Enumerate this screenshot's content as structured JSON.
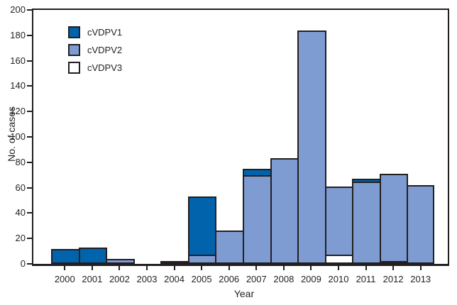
{
  "chart_data": {
    "type": "bar",
    "stacked": true,
    "title": "",
    "xlabel": "Year",
    "ylabel": "No. of cases",
    "categories": [
      "2000",
      "2001",
      "2002",
      "2003",
      "2004",
      "2005",
      "2006",
      "2007",
      "2008",
      "2009",
      "2010",
      "2011",
      "2012",
      "2013"
    ],
    "series": [
      {
        "name": "cVDPV1",
        "color": "#0063ac",
        "values": [
          12,
          13,
          0,
          0,
          2,
          46,
          0,
          5,
          0,
          0,
          0,
          2,
          0,
          0
        ]
      },
      {
        "name": "cVDPV2",
        "color": "#7f9cd2",
        "values": [
          0,
          0,
          4,
          0,
          0,
          7,
          26,
          70,
          83,
          184,
          54,
          65,
          69,
          62
        ]
      },
      {
        "name": "cVDPV3",
        "color": "#ffffff",
        "values": [
          0,
          0,
          0,
          0,
          0,
          0,
          0,
          0,
          0,
          0,
          7,
          0,
          2,
          0
        ]
      }
    ],
    "stack_bottom_to_top": [
      "cVDPV3",
      "cVDPV2",
      "cVDPV1"
    ],
    "totals": [
      12,
      13,
      4,
      0,
      2,
      53,
      26,
      75,
      83,
      184,
      61,
      67,
      71,
      62
    ],
    "ylim": [
      0,
      200
    ],
    "yticks": [
      0,
      20,
      40,
      60,
      80,
      100,
      120,
      140,
      160,
      180,
      200
    ],
    "grid": false,
    "legend_position": "top-left-inside",
    "outline_color": "#231f20",
    "background_color": "#ffffff"
  }
}
